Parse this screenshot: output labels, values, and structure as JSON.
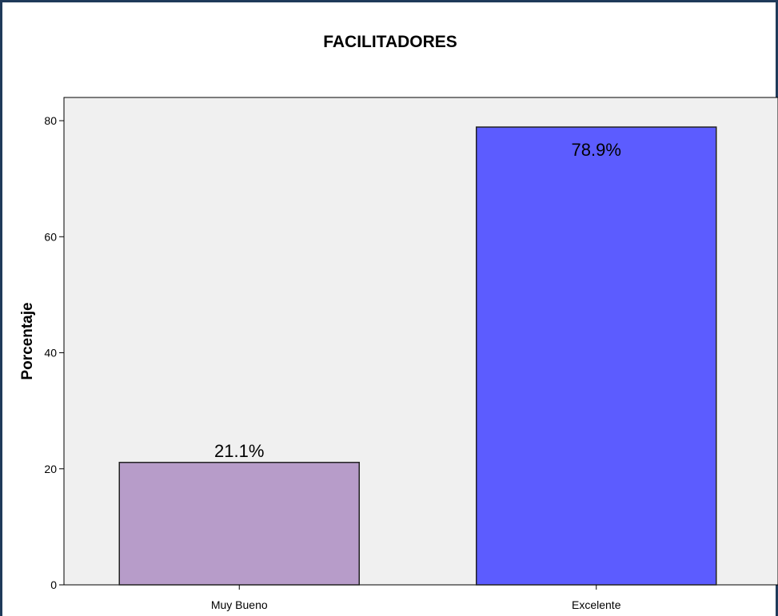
{
  "chart_data": {
    "type": "bar",
    "title": "FACILITADORES",
    "xlabel": "",
    "ylabel": "Porcentaje",
    "categories": [
      "Muy Bueno",
      "Excelente"
    ],
    "values": [
      21.1,
      78.9
    ],
    "data_labels": [
      "21.1%",
      "78.9%"
    ],
    "ylim": [
      0,
      84
    ],
    "yticks": [
      0,
      20,
      40,
      60,
      80
    ],
    "grid": false,
    "legend": "none",
    "colors": [
      "#b79cc9",
      "#5c5cff"
    ],
    "plot_background": "#f0f0f0",
    "frame_color": "#1f3a5a"
  }
}
